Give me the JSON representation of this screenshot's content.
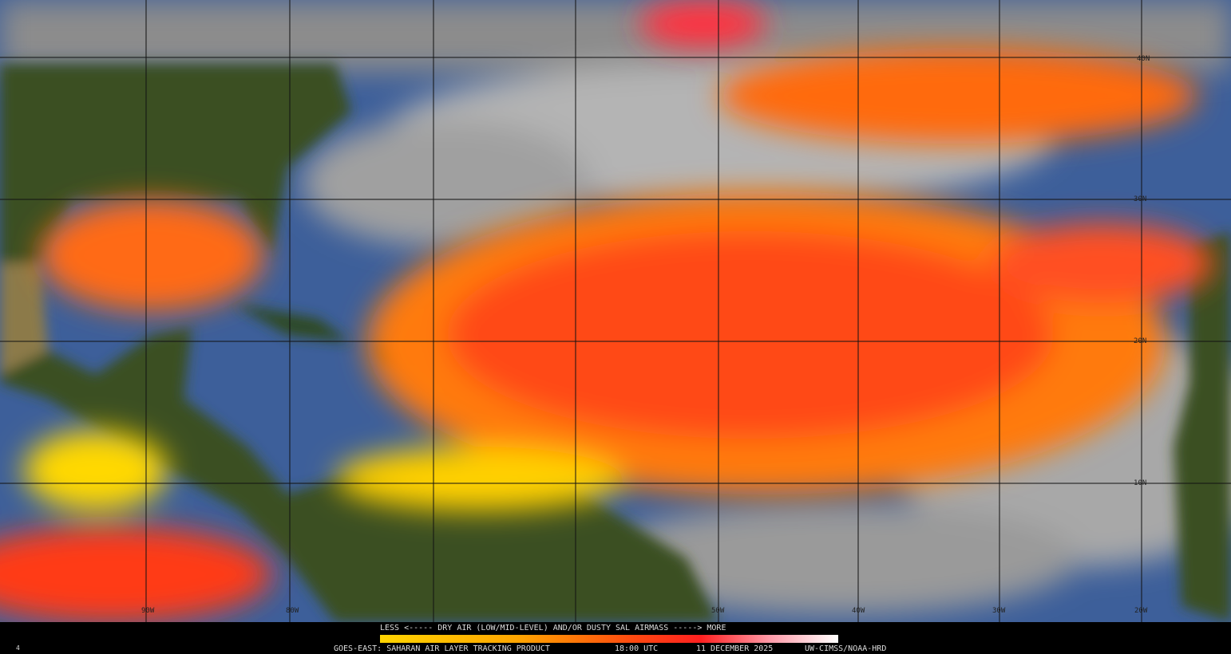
{
  "map": {
    "lat_labels": [
      "40N",
      "30N",
      "20N",
      "10N"
    ],
    "lon_labels": [
      "90W",
      "80W",
      "50W",
      "40W",
      "30W",
      "20W"
    ]
  },
  "legend": {
    "caption": "LESS <----- DRY AIR (LOW/MID-LEVEL) AND/OR DUSTY SAL AIRMASS -----> MORE"
  },
  "footer": {
    "corner": "4",
    "product": "GOES-EAST: SAHARAN AIR LAYER TRACKING PRODUCT",
    "time": "18:00 UTC",
    "date": "11 DECEMBER 2025",
    "credit": "UW-CIMSS/NOAA-HRD"
  }
}
